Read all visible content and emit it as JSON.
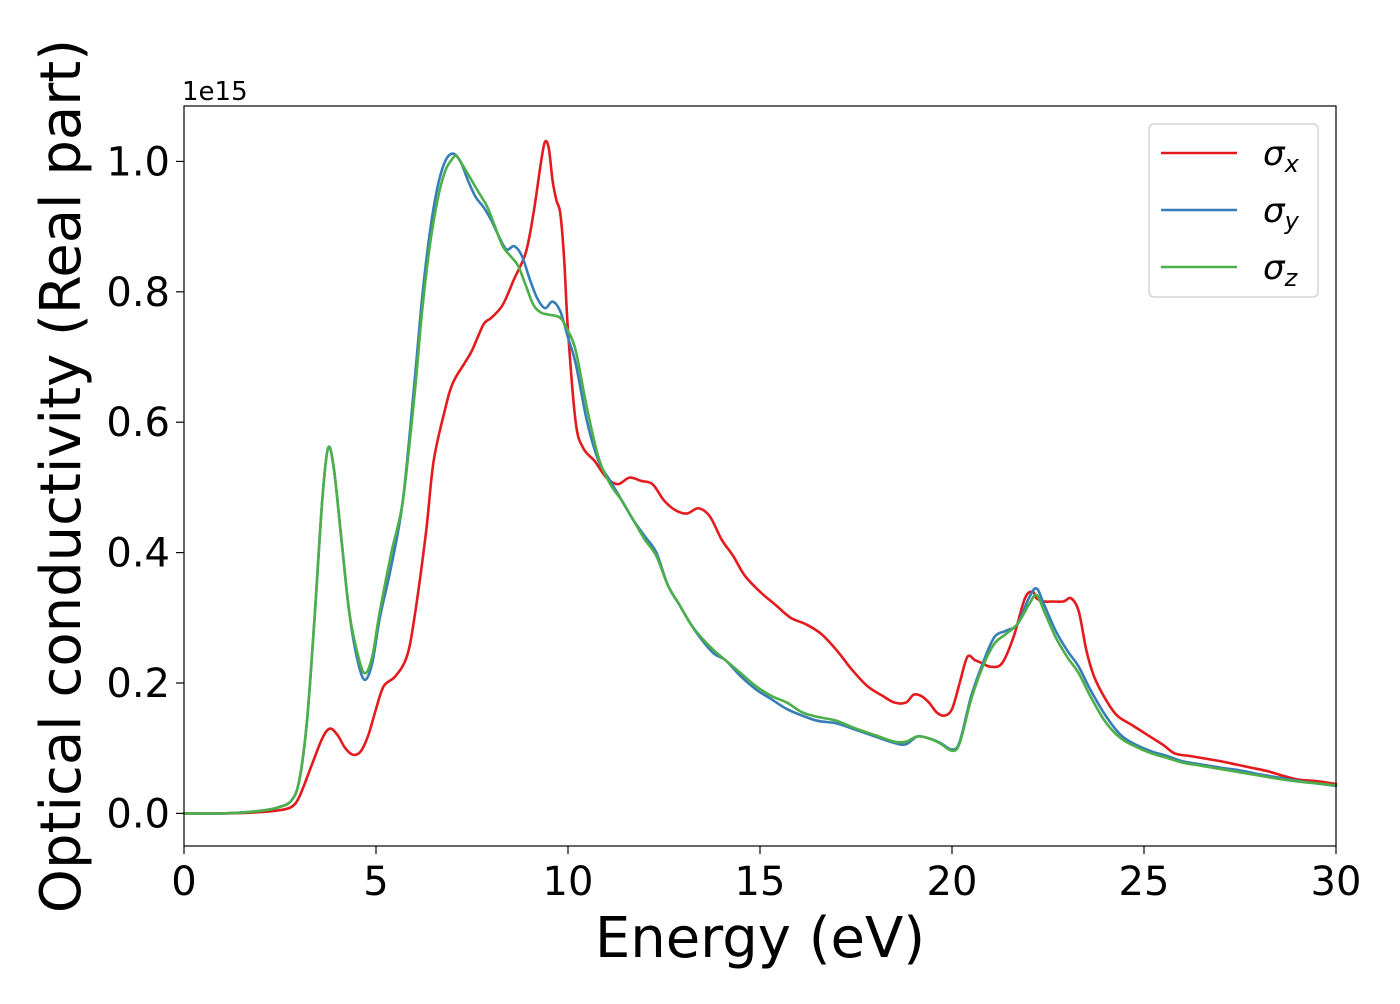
{
  "chart_data": {
    "type": "line",
    "xlabel": "Energy (eV)",
    "ylabel": "Optical conductivity (Real part)",
    "xlim": [
      0,
      30
    ],
    "ylim": [
      -0.05,
      1.085
    ],
    "y_offset_label": "1e15",
    "x_ticks": [
      {
        "value": 0,
        "label": "0"
      },
      {
        "value": 5,
        "label": "5"
      },
      {
        "value": 10,
        "label": "10"
      },
      {
        "value": 15,
        "label": "15"
      },
      {
        "value": 20,
        "label": "20"
      },
      {
        "value": 25,
        "label": "25"
      },
      {
        "value": 30,
        "label": "30"
      }
    ],
    "y_ticks": [
      {
        "value": 0.0,
        "label": "0.0"
      },
      {
        "value": 0.2,
        "label": "0.2"
      },
      {
        "value": 0.4,
        "label": "0.4"
      },
      {
        "value": 0.6,
        "label": "0.6"
      },
      {
        "value": 0.8,
        "label": "0.8"
      },
      {
        "value": 1.0,
        "label": "1.0"
      }
    ],
    "grid": false,
    "legend_position": "top-right",
    "series": [
      {
        "name": "σx",
        "legend_base": "σ",
        "legend_sub": "x",
        "color": "#e41a1c",
        "x": [
          0,
          1,
          2,
          2.5,
          2.8,
          3.0,
          3.3,
          3.6,
          3.8,
          4.0,
          4.2,
          4.4,
          4.6,
          4.8,
          5.0,
          5.2,
          5.5,
          5.8,
          6.0,
          6.3,
          6.5,
          6.8,
          7.0,
          7.3,
          7.5,
          7.8,
          8.0,
          8.3,
          8.6,
          8.9,
          9.1,
          9.3,
          9.4,
          9.5,
          9.6,
          9.7,
          9.8,
          9.9,
          10.0,
          10.2,
          10.4,
          10.7,
          11.0,
          11.3,
          11.6,
          11.9,
          12.2,
          12.5,
          12.8,
          13.1,
          13.4,
          13.7,
          14.0,
          14.3,
          14.6,
          15.0,
          15.4,
          15.8,
          16.2,
          16.6,
          17.0,
          17.4,
          17.8,
          18.2,
          18.5,
          18.8,
          19.0,
          19.2,
          19.4,
          19.6,
          19.8,
          20.0,
          20.2,
          20.4,
          20.6,
          20.8,
          21.0,
          21.3,
          21.6,
          21.9,
          22.1,
          22.2,
          22.4,
          22.6,
          22.9,
          23.1,
          23.3,
          23.5,
          23.7,
          24.0,
          24.3,
          24.7,
          25.1,
          25.5,
          25.8,
          26.2,
          26.6,
          27.0,
          27.4,
          27.8,
          28.2,
          28.6,
          29.0,
          29.4,
          29.7,
          30.0
        ],
        "y": [
          0.0,
          0.0,
          0.002,
          0.005,
          0.01,
          0.025,
          0.07,
          0.115,
          0.13,
          0.12,
          0.1,
          0.09,
          0.095,
          0.12,
          0.16,
          0.195,
          0.21,
          0.24,
          0.3,
          0.43,
          0.54,
          0.62,
          0.66,
          0.69,
          0.71,
          0.75,
          0.76,
          0.78,
          0.82,
          0.86,
          0.92,
          1.0,
          1.03,
          1.02,
          0.97,
          0.94,
          0.92,
          0.85,
          0.74,
          0.6,
          0.56,
          0.54,
          0.515,
          0.505,
          0.515,
          0.51,
          0.505,
          0.48,
          0.465,
          0.46,
          0.468,
          0.455,
          0.42,
          0.395,
          0.365,
          0.34,
          0.32,
          0.3,
          0.29,
          0.275,
          0.25,
          0.22,
          0.195,
          0.18,
          0.17,
          0.17,
          0.182,
          0.18,
          0.17,
          0.155,
          0.15,
          0.16,
          0.2,
          0.24,
          0.235,
          0.23,
          0.225,
          0.23,
          0.27,
          0.33,
          0.34,
          0.33,
          0.325,
          0.325,
          0.325,
          0.33,
          0.31,
          0.25,
          0.21,
          0.175,
          0.15,
          0.135,
          0.12,
          0.105,
          0.092,
          0.088,
          0.084,
          0.08,
          0.075,
          0.07,
          0.065,
          0.058,
          0.052,
          0.05,
          0.048,
          0.045
        ]
      },
      {
        "name": "σy",
        "legend_base": "σ",
        "legend_sub": "y",
        "color": "#377eb8",
        "x": [
          0,
          1,
          2,
          2.5,
          2.8,
          3.0,
          3.2,
          3.4,
          3.6,
          3.75,
          3.9,
          4.1,
          4.3,
          4.5,
          4.7,
          4.9,
          5.1,
          5.4,
          5.7,
          6.0,
          6.2,
          6.4,
          6.6,
          6.8,
          7.0,
          7.2,
          7.4,
          7.6,
          7.8,
          8.0,
          8.2,
          8.4,
          8.6,
          8.8,
          9.0,
          9.2,
          9.4,
          9.6,
          9.8,
          10.0,
          10.2,
          10.5,
          10.8,
          11.1,
          11.4,
          11.7,
          12.0,
          12.3,
          12.6,
          12.9,
          13.2,
          13.5,
          13.8,
          14.1,
          14.5,
          14.9,
          15.3,
          15.7,
          16.1,
          16.5,
          17.0,
          17.5,
          18.0,
          18.5,
          18.8,
          19.1,
          19.4,
          19.7,
          20.0,
          20.2,
          20.5,
          20.8,
          21.1,
          21.4,
          21.7,
          22.0,
          22.2,
          22.4,
          22.7,
          23.0,
          23.3,
          23.6,
          24.0,
          24.4,
          24.8,
          25.2,
          25.6,
          26.0,
          26.5,
          27.0,
          27.5,
          28.0,
          28.5,
          29.0,
          29.5,
          30.0
        ],
        "y": [
          0.0,
          0.0,
          0.004,
          0.01,
          0.02,
          0.05,
          0.14,
          0.3,
          0.48,
          0.56,
          0.53,
          0.42,
          0.31,
          0.24,
          0.205,
          0.23,
          0.3,
          0.38,
          0.48,
          0.66,
          0.79,
          0.89,
          0.96,
          1.0,
          1.012,
          1.0,
          0.97,
          0.945,
          0.93,
          0.91,
          0.885,
          0.865,
          0.87,
          0.855,
          0.82,
          0.79,
          0.775,
          0.785,
          0.77,
          0.73,
          0.69,
          0.6,
          0.54,
          0.51,
          0.48,
          0.45,
          0.425,
          0.4,
          0.35,
          0.32,
          0.29,
          0.265,
          0.245,
          0.235,
          0.21,
          0.19,
          0.175,
          0.16,
          0.15,
          0.142,
          0.138,
          0.128,
          0.118,
          0.108,
          0.106,
          0.118,
          0.115,
          0.108,
          0.098,
          0.11,
          0.18,
          0.23,
          0.27,
          0.28,
          0.29,
          0.33,
          0.345,
          0.32,
          0.28,
          0.25,
          0.225,
          0.19,
          0.15,
          0.12,
          0.105,
          0.095,
          0.088,
          0.08,
          0.075,
          0.07,
          0.066,
          0.06,
          0.055,
          0.05,
          0.046,
          0.042
        ]
      },
      {
        "name": "σz",
        "legend_base": "σ",
        "legend_sub": "z",
        "color": "#4daf4a",
        "x": [
          0,
          1,
          2,
          2.5,
          2.8,
          3.0,
          3.2,
          3.4,
          3.6,
          3.75,
          3.9,
          4.1,
          4.3,
          4.5,
          4.7,
          4.9,
          5.1,
          5.4,
          5.7,
          6.0,
          6.2,
          6.4,
          6.6,
          6.8,
          7.0,
          7.1,
          7.3,
          7.5,
          7.7,
          7.9,
          8.1,
          8.3,
          8.5,
          8.7,
          8.9,
          9.1,
          9.3,
          9.5,
          9.8,
          10.0,
          10.2,
          10.5,
          10.8,
          11.1,
          11.4,
          11.7,
          12.0,
          12.3,
          12.6,
          12.9,
          13.2,
          13.5,
          13.8,
          14.1,
          14.5,
          14.9,
          15.3,
          15.7,
          16.1,
          16.5,
          17.0,
          17.5,
          18.0,
          18.5,
          18.8,
          19.1,
          19.4,
          19.7,
          20.0,
          20.2,
          20.5,
          20.8,
          21.1,
          21.4,
          21.7,
          22.0,
          22.2,
          22.4,
          22.7,
          23.0,
          23.3,
          23.6,
          24.0,
          24.4,
          24.8,
          25.2,
          25.6,
          26.0,
          26.5,
          27.0,
          27.5,
          28.0,
          28.5,
          29.0,
          29.5,
          30.0
        ],
        "y": [
          0.0,
          0.0,
          0.004,
          0.01,
          0.02,
          0.05,
          0.14,
          0.3,
          0.48,
          0.56,
          0.53,
          0.42,
          0.31,
          0.25,
          0.215,
          0.24,
          0.31,
          0.4,
          0.48,
          0.64,
          0.77,
          0.87,
          0.94,
          0.985,
          1.005,
          1.008,
          0.99,
          0.97,
          0.95,
          0.93,
          0.9,
          0.87,
          0.855,
          0.84,
          0.81,
          0.78,
          0.768,
          0.765,
          0.76,
          0.74,
          0.71,
          0.62,
          0.545,
          0.505,
          0.48,
          0.45,
          0.42,
          0.395,
          0.35,
          0.32,
          0.29,
          0.268,
          0.25,
          0.235,
          0.215,
          0.195,
          0.18,
          0.17,
          0.155,
          0.148,
          0.142,
          0.13,
          0.12,
          0.11,
          0.11,
          0.118,
          0.115,
          0.107,
          0.096,
          0.108,
          0.175,
          0.225,
          0.26,
          0.275,
          0.29,
          0.32,
          0.335,
          0.31,
          0.27,
          0.24,
          0.215,
          0.18,
          0.14,
          0.115,
          0.102,
          0.092,
          0.085,
          0.078,
          0.073,
          0.068,
          0.063,
          0.058,
          0.053,
          0.049,
          0.046,
          0.043
        ]
      }
    ]
  }
}
